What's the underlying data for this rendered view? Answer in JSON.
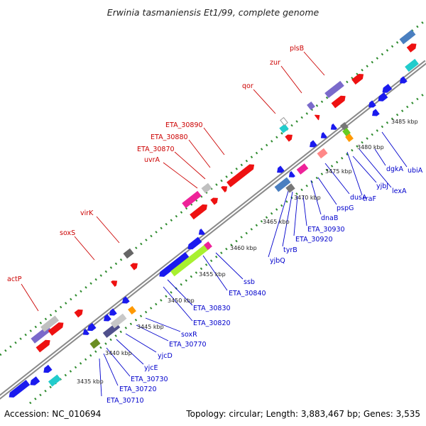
{
  "title": "Erwinia tasmaniensis Et1/99, complete genome",
  "footer": {
    "accession": "Accession: NC_010694",
    "topology": "Topology: circular; Length: 3,883,467 bp; Genes: 3,535"
  },
  "colors": {
    "backbone": "#9e9e9e",
    "dots": "#2e8b2e",
    "forward_label": "#cc0000",
    "reverse_label": "#0000cc",
    "cds_red": "#ee1111",
    "cds_blue": "#1a1aee"
  },
  "kbp_ticks": [
    "3435 kbp",
    "3440 kbp",
    "3445 kbp",
    "3450 kbp",
    "3455 kbp",
    "3460 kbp",
    "3465 kbp",
    "3470 kbp",
    "3475 kbp",
    "3480 kbp",
    "3485 kbp"
  ],
  "forward_labels": [
    "actP",
    "soxS",
    "virK",
    "uvrA",
    "ETA_30870",
    "ETA_30880",
    "ETA_30890",
    "qor",
    "zur",
    "plsB"
  ],
  "reverse_labels": [
    "ETA_30710",
    "ETA_30720",
    "ETA_30730",
    "yjcE",
    "yjcD",
    "ETA_30770",
    "soxR",
    "ETA_30820",
    "ETA_30830",
    "ETA_30840",
    "ssb",
    "yjbQ",
    "tyrB",
    "ETA_30920",
    "ETA_30930",
    "dnaB",
    "pspG",
    "dusA",
    "traF",
    "yjbJ",
    "lexA",
    "dgkA",
    "ubiA"
  ]
}
